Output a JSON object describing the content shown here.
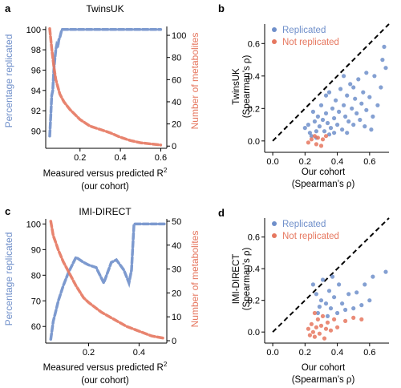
{
  "colors": {
    "blue": "#6f8fca",
    "red": "#e6775f",
    "black": "#000000"
  },
  "chart_data": [
    {
      "panel": "a",
      "title": "TwinsUK",
      "type": "line",
      "xlabel_line1": "Measured versus predicted R",
      "xlabel_sup": "2",
      "xlabel_line2": "(our cohort)",
      "ylabel_left": "Percentage replicated",
      "ylabel_right": "Number of metabolites",
      "xlim": [
        0.03,
        0.63
      ],
      "ylim_left": [
        88.3,
        100.3
      ],
      "ylim_right": [
        -2,
        108
      ],
      "xticks": [
        0.2,
        0.4,
        0.6
      ],
      "xtick_labels": [
        "0.2",
        "0.4",
        "0.6"
      ],
      "yticks_left": [
        90,
        92,
        94,
        96,
        98,
        100
      ],
      "ytick_labels_left": [
        "90",
        "92",
        "94",
        "96",
        "98",
        "100"
      ],
      "yticks_right": [
        0,
        20,
        40,
        60,
        80,
        100
      ],
      "ytick_labels_right": [
        "0",
        "20",
        "40",
        "60",
        "80",
        "100"
      ],
      "series": [
        {
          "name": "Percentage replicated",
          "axis": "left",
          "x": [
            0.05,
            0.055,
            0.06,
            0.065,
            0.07,
            0.075,
            0.08,
            0.085,
            0.09,
            0.095,
            0.1,
            0.11,
            0.2,
            0.4,
            0.6
          ],
          "y": [
            89.5,
            91.5,
            93.5,
            94,
            96,
            97,
            98,
            98.5,
            98.3,
            99,
            99.2,
            100,
            100,
            100,
            100
          ]
        },
        {
          "name": "Number of metabolites",
          "axis": "right",
          "x": [
            0.05,
            0.06,
            0.07,
            0.08,
            0.1,
            0.12,
            0.15,
            0.2,
            0.25,
            0.3,
            0.35,
            0.4,
            0.45,
            0.5,
            0.55,
            0.6
          ],
          "y": [
            106,
            88,
            72,
            60,
            47,
            40,
            33,
            24,
            18,
            15,
            12,
            8,
            5,
            3,
            2,
            1
          ]
        }
      ]
    },
    {
      "panel": "b",
      "type": "scatter",
      "xlabel_line1": "Our cohort",
      "xlabel_line2": "(Spearman’s ρ)",
      "ylabel_line1": "TwinsUK",
      "ylabel_line2": "(Spearman’s ρ)",
      "xlim": [
        -0.05,
        0.72
      ],
      "ylim": [
        -0.07,
        0.72
      ],
      "xticks": [
        0.0,
        0.2,
        0.4,
        0.6
      ],
      "xtick_labels": [
        "0.0",
        "0.2",
        "0.4",
        "0.6"
      ],
      "yticks": [
        0.0,
        0.2,
        0.4,
        0.6
      ],
      "ytick_labels": [
        "0.0",
        "0.2",
        "0.4",
        "0.6"
      ],
      "legend_position": "top-left",
      "diagonal": true,
      "series": [
        {
          "name": "Replicated",
          "points": [
            [
              0.2,
              0.08
            ],
            [
              0.22,
              0.1
            ],
            [
              0.23,
              0.05
            ],
            [
              0.25,
              0.18
            ],
            [
              0.26,
              0.12
            ],
            [
              0.27,
              0.06
            ],
            [
              0.28,
              0.15
            ],
            [
              0.29,
              0.09
            ],
            [
              0.3,
              0.22
            ],
            [
              0.31,
              0.13
            ],
            [
              0.32,
              0.06
            ],
            [
              0.33,
              0.17
            ],
            [
              0.34,
              0.11
            ],
            [
              0.35,
              0.3
            ],
            [
              0.36,
              0.08
            ],
            [
              0.37,
              0.2
            ],
            [
              0.38,
              0.14
            ],
            [
              0.39,
              0.25
            ],
            [
              0.4,
              0.1
            ],
            [
              0.41,
              0.18
            ],
            [
              0.42,
              0.32
            ],
            [
              0.43,
              0.07
            ],
            [
              0.44,
              0.22
            ],
            [
              0.45,
              0.15
            ],
            [
              0.46,
              0.28
            ],
            [
              0.47,
              0.12
            ],
            [
              0.48,
              0.35
            ],
            [
              0.49,
              0.2
            ],
            [
              0.5,
              0.1
            ],
            [
              0.51,
              0.26
            ],
            [
              0.52,
              0.17
            ],
            [
              0.53,
              0.38
            ],
            [
              0.54,
              0.13
            ],
            [
              0.55,
              0.23
            ],
            [
              0.56,
              0.3
            ],
            [
              0.57,
              0.09
            ],
            [
              0.58,
              0.19
            ],
            [
              0.6,
              0.27
            ],
            [
              0.62,
              0.15
            ],
            [
              0.63,
              0.4
            ],
            [
              0.65,
              0.22
            ],
            [
              0.67,
              0.33
            ],
            [
              0.68,
              0.5
            ],
            [
              0.69,
              0.58
            ],
            [
              0.7,
              0.45
            ],
            [
              0.24,
              0.03
            ],
            [
              0.27,
              0.02
            ],
            [
              0.33,
              0.28
            ],
            [
              0.38,
              0.05
            ],
            [
              0.44,
              0.4
            ],
            [
              0.5,
              0.33
            ],
            [
              0.58,
              0.42
            ],
            [
              0.61,
              0.07
            ],
            [
              0.35,
              0.04
            ],
            [
              0.46,
              0.05
            ]
          ]
        },
        {
          "name": "Not replicated",
          "points": [
            [
              0.22,
              -0.01
            ],
            [
              0.24,
              0.01
            ],
            [
              0.26,
              0.03
            ],
            [
              0.27,
              -0.02
            ],
            [
              0.28,
              0.02
            ],
            [
              0.3,
              -0.03
            ],
            [
              0.31,
              0.01
            ],
            [
              0.33,
              0.03
            ]
          ]
        }
      ]
    },
    {
      "panel": "c",
      "title": "IMI-DIRECT",
      "type": "line",
      "xlabel_line1": "Measured versus predicted R",
      "xlabel_sup": "2",
      "xlabel_line2": "(our cohort)",
      "ylabel_left": "Percentage replicated",
      "ylabel_right": "Number of metabolites",
      "xlim": [
        0.03,
        0.51
      ],
      "ylim_left": [
        53.5,
        102
      ],
      "ylim_right": [
        -1,
        51
      ],
      "xticks": [
        0.2,
        0.4
      ],
      "xtick_labels": [
        "0.2",
        "0.4"
      ],
      "yticks_left": [
        60,
        70,
        80,
        90,
        100
      ],
      "ytick_labels_left": [
        "60",
        "70",
        "80",
        "90",
        "100"
      ],
      "yticks_right": [
        0,
        10,
        20,
        30,
        40,
        50
      ],
      "ytick_labels_right": [
        "0",
        "10",
        "20",
        "30",
        "40",
        "50"
      ],
      "series": [
        {
          "name": "Percentage replicated",
          "axis": "left",
          "x": [
            0.05,
            0.06,
            0.07,
            0.08,
            0.1,
            0.12,
            0.15,
            0.18,
            0.2,
            0.23,
            0.26,
            0.29,
            0.31,
            0.34,
            0.36,
            0.37,
            0.38,
            0.4,
            0.45,
            0.5
          ],
          "y": [
            55,
            62,
            66,
            70,
            76,
            81,
            87,
            85,
            84,
            83,
            77,
            85,
            86,
            82,
            77,
            82,
            100,
            100,
            100,
            100
          ]
        },
        {
          "name": "Number of metabolites",
          "axis": "right",
          "x": [
            0.05,
            0.06,
            0.07,
            0.08,
            0.1,
            0.12,
            0.15,
            0.18,
            0.2,
            0.25,
            0.3,
            0.35,
            0.4,
            0.45,
            0.5
          ],
          "y": [
            50,
            44,
            41,
            38,
            33,
            29,
            23,
            18,
            16,
            12,
            9,
            6,
            4,
            2,
            1
          ]
        }
      ]
    },
    {
      "panel": "d",
      "type": "scatter",
      "xlabel_line1": "Our cohort",
      "xlabel_line2": "(Spearman’s ρ)",
      "ylabel_line1": "IMI-DIRECT",
      "ylabel_line2": "(Spearman’s ρ)",
      "xlim": [
        -0.05,
        0.72
      ],
      "ylim": [
        -0.07,
        0.72
      ],
      "xticks": [
        0.0,
        0.2,
        0.4,
        0.6
      ],
      "xtick_labels": [
        "0.0",
        "0.2",
        "0.4",
        "0.6"
      ],
      "yticks": [
        0.0,
        0.2,
        0.4,
        0.6
      ],
      "ytick_labels": [
        "0.0",
        "0.2",
        "0.4",
        "0.6"
      ],
      "legend_position": "top-left",
      "diagonal": true,
      "series": [
        {
          "name": "Replicated",
          "points": [
            [
              0.25,
              0.3
            ],
            [
              0.27,
              0.24
            ],
            [
              0.28,
              0.12
            ],
            [
              0.3,
              0.2
            ],
            [
              0.31,
              0.33
            ],
            [
              0.33,
              0.18
            ],
            [
              0.34,
              0.1
            ],
            [
              0.35,
              0.26
            ],
            [
              0.36,
              0.15
            ],
            [
              0.38,
              0.22
            ],
            [
              0.4,
              0.12
            ],
            [
              0.41,
              0.3
            ],
            [
              0.43,
              0.18
            ],
            [
              0.45,
              0.14
            ],
            [
              0.47,
              0.24
            ],
            [
              0.5,
              0.15
            ],
            [
              0.52,
              0.25
            ],
            [
              0.55,
              0.17
            ],
            [
              0.57,
              0.3
            ],
            [
              0.6,
              0.2
            ],
            [
              0.62,
              0.35
            ],
            [
              0.7,
              0.38
            ],
            [
              0.29,
              0.16
            ],
            [
              0.37,
              0.35
            ]
          ]
        },
        {
          "name": "Not replicated",
          "points": [
            [
              0.22,
              0.02
            ],
            [
              0.23,
              -0.02
            ],
            [
              0.24,
              0.05
            ],
            [
              0.25,
              0.0
            ],
            [
              0.26,
              -0.03
            ],
            [
              0.27,
              0.03
            ],
            [
              0.28,
              0.08
            ],
            [
              0.29,
              -0.01
            ],
            [
              0.3,
              0.04
            ],
            [
              0.31,
              0.1
            ],
            [
              0.32,
              -0.04
            ],
            [
              0.33,
              0.02
            ],
            [
              0.34,
              0.06
            ],
            [
              0.36,
              0.01
            ],
            [
              0.38,
              0.08
            ],
            [
              0.4,
              0.03
            ],
            [
              0.45,
              0.07
            ],
            [
              0.5,
              0.09
            ],
            [
              0.55,
              0.08
            ],
            [
              0.26,
              0.12
            ]
          ]
        }
      ]
    }
  ]
}
